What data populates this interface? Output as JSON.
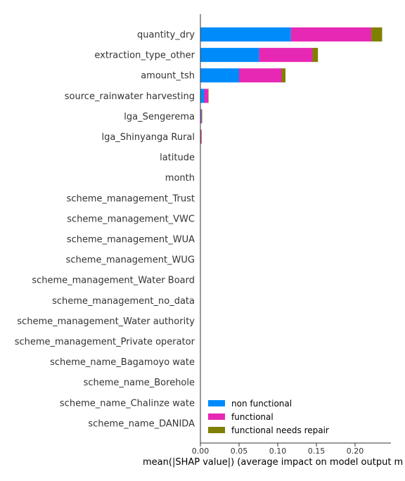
{
  "chart_data": {
    "type": "bar",
    "orientation": "horizontal",
    "stacked": true,
    "title": "",
    "xlabel": "mean(|SHAP value|) (average impact on model output m",
    "ylabel": "",
    "xlim": [
      0,
      0.245
    ],
    "xticks": [
      "0.00",
      "0.05",
      "0.10",
      "0.15",
      "0.20"
    ],
    "xtick_values": [
      0,
      0.05,
      0.1,
      0.15,
      0.2
    ],
    "grid": false,
    "legend_position": "bottom-right",
    "categories": [
      "quantity_dry",
      "extraction_type_other",
      "amount_tsh",
      "source_rainwater harvesting",
      "lga_Sengerema",
      "lga_Shinyanga Rural",
      "latitude",
      "month",
      "scheme_management_Trust",
      "scheme_management_VWC",
      "scheme_management_WUA",
      "scheme_management_WUG",
      "scheme_management_Water Board",
      "scheme_management_no_data",
      "scheme_management_Water authority",
      "scheme_management_Private operator",
      "scheme_name_Bagamoyo wate",
      "scheme_name_Borehole",
      "scheme_name_Chalinze wate",
      "scheme_name_DANIDA"
    ],
    "series": [
      {
        "name": "non functional",
        "color": "#008bfb",
        "values": [
          0.117,
          0.076,
          0.05,
          0.005,
          0.001,
          0.0003,
          0,
          0,
          0,
          0,
          0,
          0,
          0,
          0,
          0,
          0,
          0,
          0,
          0,
          0
        ]
      },
      {
        "name": "functional",
        "color": "#e628b4",
        "values": [
          0.104,
          0.069,
          0.055,
          0.005,
          0.0008,
          0.0009,
          0,
          0,
          0,
          0,
          0,
          0,
          0,
          0,
          0,
          0,
          0,
          0,
          0,
          0
        ]
      },
      {
        "name": "functional needs repair",
        "color": "#808000",
        "values": [
          0.014,
          0.007,
          0.005,
          0.0005,
          0.0001,
          0.0001,
          0,
          0,
          0,
          0,
          0,
          0,
          0,
          0,
          0,
          0,
          0,
          0,
          0,
          0
        ]
      }
    ]
  }
}
